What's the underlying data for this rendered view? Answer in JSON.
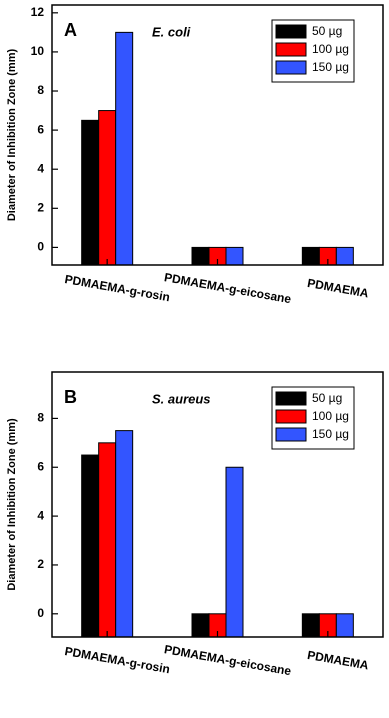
{
  "chart_data": [
    {
      "type": "bar",
      "panel_label": "A",
      "annotation": "E. coli",
      "y_label": "Diameter of Inhibition Zone (mm)",
      "categories": [
        "PDMAEMA-g-rosin",
        "PDMAEMA-g-eicosane",
        "PDMAEMA"
      ],
      "series": [
        {
          "name": "50 µg",
          "color": "#000000",
          "values": [
            6.5,
            0,
            0
          ]
        },
        {
          "name": "100 µg",
          "color": "#ff0000",
          "values": [
            7,
            0,
            0
          ]
        },
        {
          "name": "150 µg",
          "color": "#3355ff",
          "values": [
            11,
            0,
            0
          ]
        }
      ],
      "ylim": [
        -0.9,
        12.4
      ],
      "yticks": [
        0,
        2,
        4,
        6,
        8,
        10,
        12
      ],
      "legend": "upper right"
    },
    {
      "type": "bar",
      "panel_label": "B",
      "annotation": "S. aureus",
      "y_label": "Diameter of Inhibition Zone (mm)",
      "categories": [
        "PDMAEMA-g-rosin",
        "PDMAEMA-g-eicosane",
        "PDMAEMA"
      ],
      "series": [
        {
          "name": "50 µg",
          "color": "#000000",
          "values": [
            6.5,
            0,
            0
          ]
        },
        {
          "name": "100 µg",
          "color": "#ff0000",
          "values": [
            7,
            0,
            0
          ]
        },
        {
          "name": "150 µg",
          "color": "#3355ff",
          "values": [
            7.5,
            6,
            0
          ]
        }
      ],
      "ylim": [
        -0.95,
        9.9
      ],
      "yticks": [
        0,
        2,
        4,
        6,
        8
      ],
      "legend": "upper right"
    }
  ]
}
